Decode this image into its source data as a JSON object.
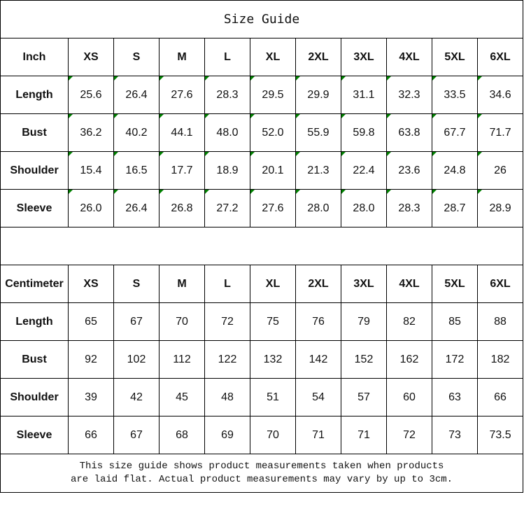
{
  "title": "Size Guide",
  "sizes": [
    "XS",
    "S",
    "M",
    "L",
    "XL",
    "2XL",
    "3XL",
    "4XL",
    "5XL",
    "6XL"
  ],
  "accent_marker_color": "#008000",
  "inch": {
    "unit_label": "Inch",
    "rows": [
      {
        "label": "Length",
        "values": [
          "25.6",
          "26.4",
          "27.6",
          "28.3",
          "29.5",
          "29.9",
          "31.1",
          "32.3",
          "33.5",
          "34.6"
        ]
      },
      {
        "label": "Bust",
        "values": [
          "36.2",
          "40.2",
          "44.1",
          "48.0",
          "52.0",
          "55.9",
          "59.8",
          "63.8",
          "67.7",
          "71.7"
        ]
      },
      {
        "label": "Shoulder",
        "values": [
          "15.4",
          "16.5",
          "17.7",
          "18.9",
          "20.1",
          "21.3",
          "22.4",
          "23.6",
          "24.8",
          "26"
        ]
      },
      {
        "label": "Sleeve",
        "values": [
          "26.0",
          "26.4",
          "26.8",
          "27.2",
          "27.6",
          "28.0",
          "28.0",
          "28.3",
          "28.7",
          "28.9"
        ]
      }
    ]
  },
  "cm": {
    "unit_label": "Centimeter",
    "rows": [
      {
        "label": "Length",
        "values": [
          "65",
          "67",
          "70",
          "72",
          "75",
          "76",
          "79",
          "82",
          "85",
          "88"
        ]
      },
      {
        "label": "Bust",
        "values": [
          "92",
          "102",
          "112",
          "122",
          "132",
          "142",
          "152",
          "162",
          "172",
          "182"
        ]
      },
      {
        "label": "Shoulder",
        "values": [
          "39",
          "42",
          "45",
          "48",
          "51",
          "54",
          "57",
          "60",
          "63",
          "66"
        ]
      },
      {
        "label": "Sleeve",
        "values": [
          "66",
          "67",
          "68",
          "69",
          "70",
          "71",
          "71",
          "72",
          "73",
          "73.5"
        ]
      }
    ]
  },
  "note": {
    "line1": "This size guide shows product measurements taken when products",
    "line2": "are laid flat. Actual product measurements may vary by up to 3cm."
  }
}
